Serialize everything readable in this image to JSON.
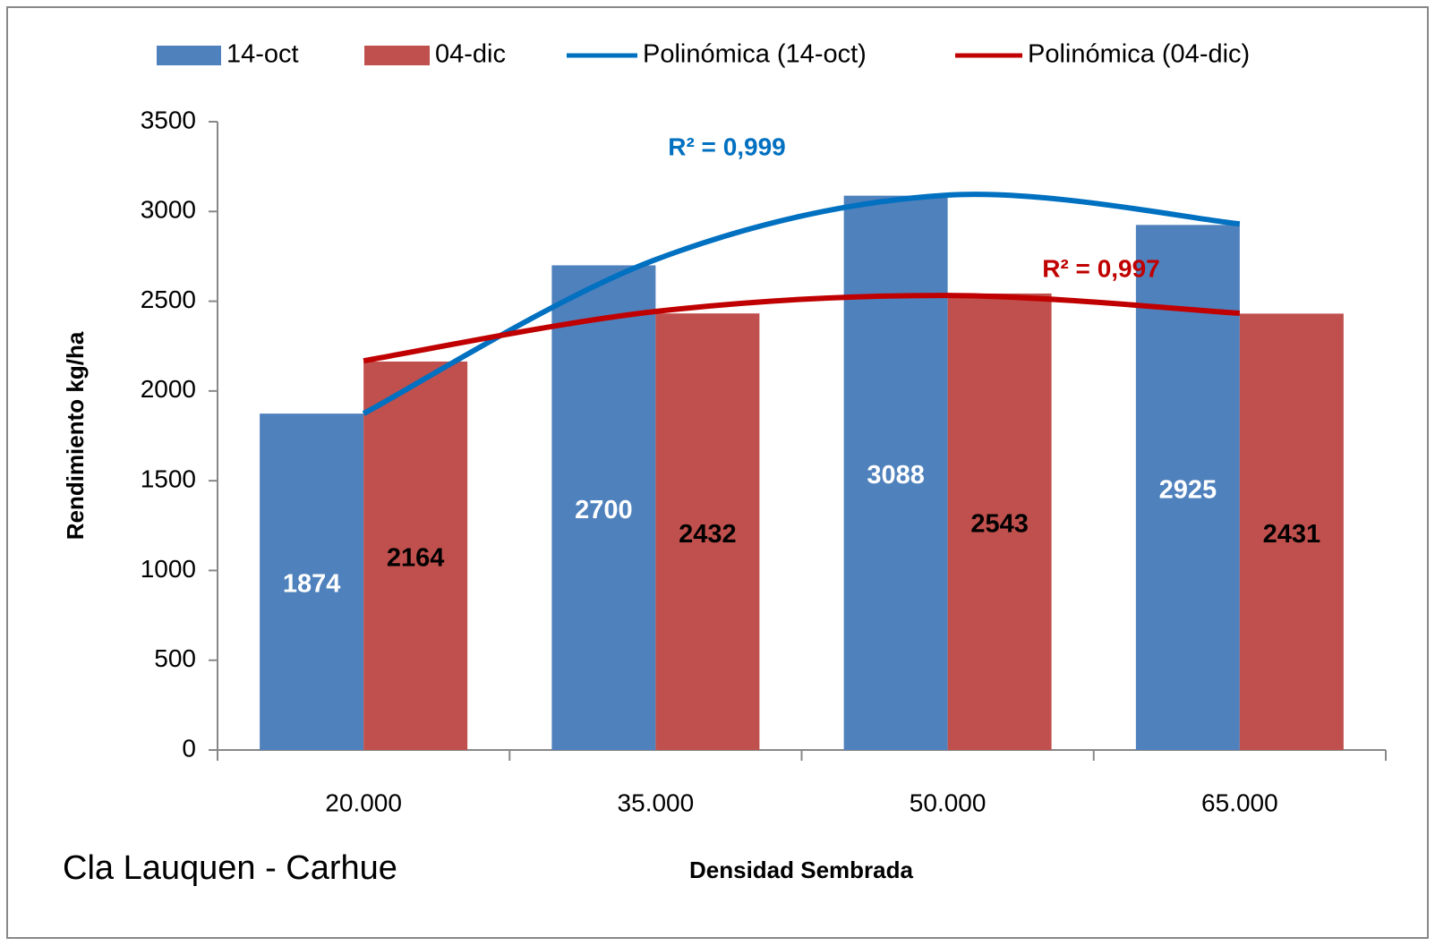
{
  "chart_data": {
    "type": "bar",
    "subtitle": "Cla Lauquen - Carhue",
    "x_label": "Densidad Sembrada",
    "y_label": "Rendimiento kg/ha",
    "categories": [
      "20.000",
      "35.000",
      "50.000",
      "65.000"
    ],
    "series": [
      {
        "name": "14-oct",
        "type": "bar",
        "color": "#4f81bd",
        "label_color": "#ffffff",
        "values": [
          1874,
          2700,
          3088,
          2925
        ]
      },
      {
        "name": "04-dic",
        "type": "bar",
        "color": "#c0504d",
        "label_color": "#000000",
        "values": [
          2164,
          2432,
          2543,
          2431
        ]
      },
      {
        "name": "Polinómica (14-oct)",
        "type": "line",
        "color": "#0070c0",
        "values": [
          1874,
          2732,
          3091,
          2931
        ]
      },
      {
        "name": "Polinómica (04-dic)",
        "type": "line",
        "color": "#c00000",
        "values": [
          2168,
          2443,
          2532,
          2433
        ]
      }
    ],
    "annotations": [
      {
        "text": "R² = 0,999",
        "color": "#0070c0"
      },
      {
        "text": "R² = 0,997",
        "color": "#c00000"
      }
    ],
    "ylim": [
      0,
      3500
    ],
    "yticks": [
      0,
      500,
      1000,
      1500,
      2000,
      2500,
      3000,
      3500
    ],
    "grid": false,
    "legend": "top"
  }
}
